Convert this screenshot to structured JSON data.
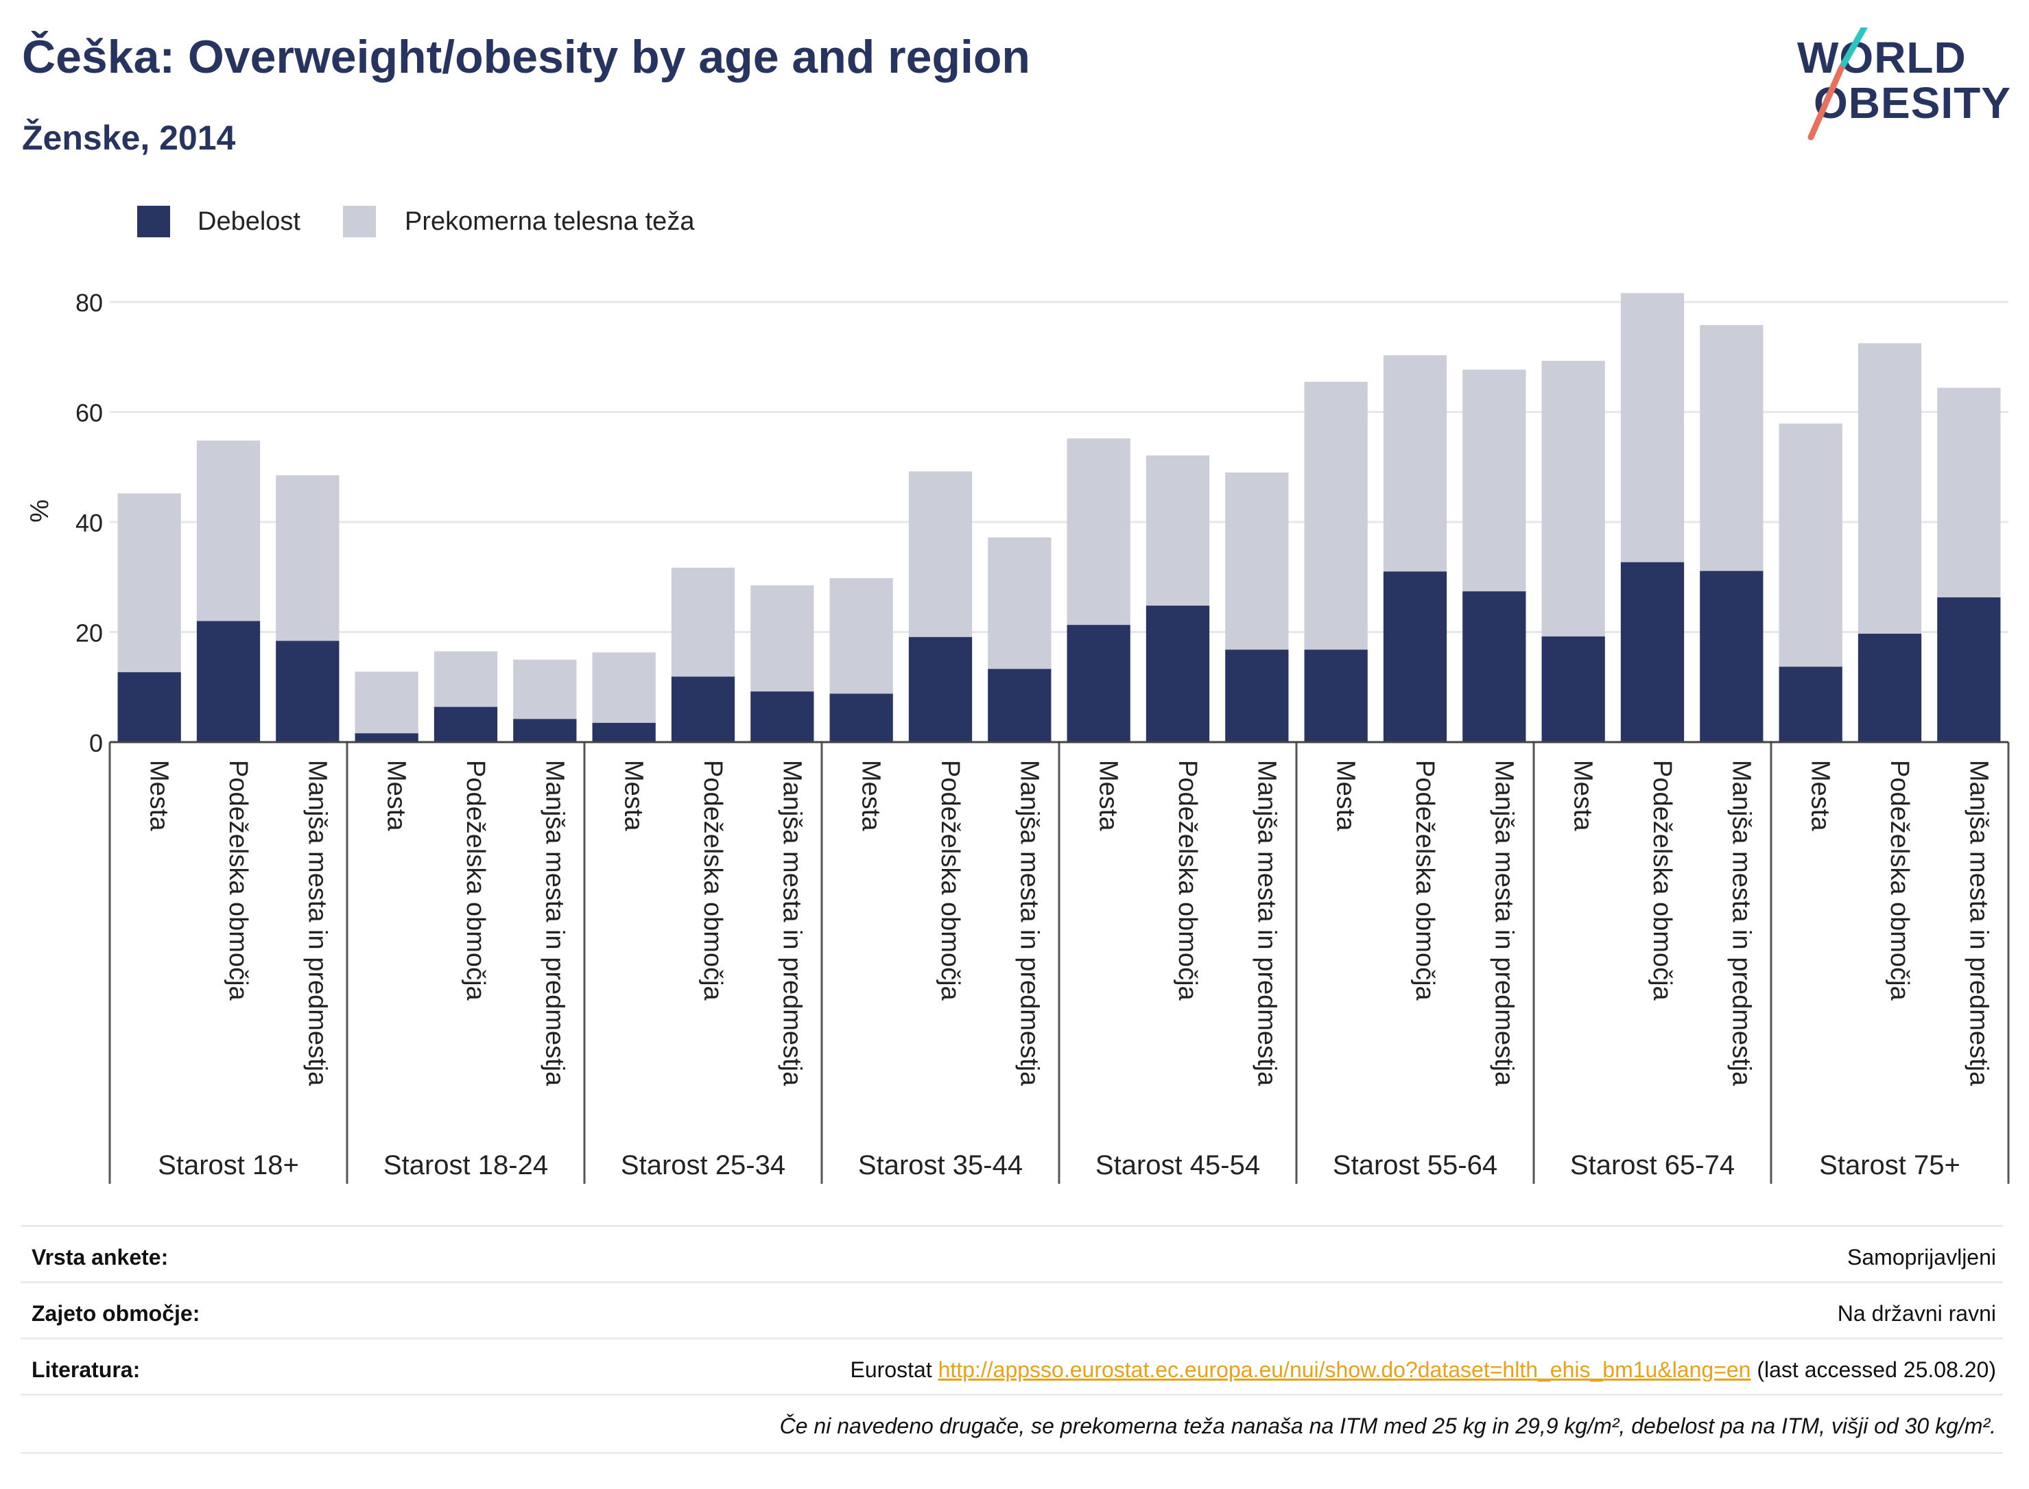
{
  "header": {
    "title": "Češka: Overweight/obesity by age and region",
    "subtitle": "Ženske, 2014"
  },
  "logo": {
    "line1": "WORLD",
    "line2": "OBESITY"
  },
  "colors": {
    "obesity": "#283462",
    "overweight": "#cbcdd9",
    "accent_teal": "#2ec4c0",
    "accent_red": "#e8705e"
  },
  "chart_data": {
    "type": "bar",
    "stacked": true,
    "ylabel": "%",
    "ylim": [
      0,
      90
    ],
    "yticks": [
      0,
      20,
      40,
      60,
      80
    ],
    "grid": true,
    "legend": "top-left",
    "series_names": [
      "Debelost",
      "Prekomerna telesna teža"
    ],
    "groups": [
      {
        "label": "Starost 18+",
        "categories": [
          "Mesta",
          "Podeželska območja",
          "Manjša mesta in predmestja"
        ],
        "obesity": [
          12.7,
          22.0,
          18.4
        ],
        "total": [
          45.2,
          54.8,
          48.5
        ]
      },
      {
        "label": "Starost 18-24",
        "categories": [
          "Mesta",
          "Podeželska območja",
          "Manjša mesta in predmestja"
        ],
        "obesity": [
          1.6,
          6.4,
          4.2
        ],
        "total": [
          12.8,
          16.5,
          15.0
        ]
      },
      {
        "label": "Starost 25-34",
        "categories": [
          "Mesta",
          "Podeželska območja",
          "Manjša mesta in predmestja"
        ],
        "obesity": [
          3.5,
          11.9,
          9.2
        ],
        "total": [
          16.3,
          31.7,
          28.5
        ]
      },
      {
        "label": "Starost 35-44",
        "categories": [
          "Mesta",
          "Podeželska območja",
          "Manjša mesta in predmestja"
        ],
        "obesity": [
          8.8,
          19.1,
          13.3
        ],
        "total": [
          29.8,
          49.2,
          37.2
        ]
      },
      {
        "label": "Starost 45-54",
        "categories": [
          "Mesta",
          "Podeželska območja",
          "Manjša mesta in predmestja"
        ],
        "obesity": [
          21.3,
          24.8,
          16.8
        ],
        "total": [
          55.2,
          52.1,
          49.0
        ]
      },
      {
        "label": "Starost 55-64",
        "categories": [
          "Mesta",
          "Podeželska območja",
          "Manjša mesta in predmestja"
        ],
        "obesity": [
          16.8,
          31.0,
          27.4
        ],
        "total": [
          65.5,
          70.3,
          67.7
        ]
      },
      {
        "label": "Starost 65-74",
        "categories": [
          "Mesta",
          "Podeželska območja",
          "Manjša mesta in predmestja"
        ],
        "obesity": [
          19.2,
          32.7,
          31.1
        ],
        "total": [
          69.3,
          81.6,
          75.8
        ]
      },
      {
        "label": "Starost 75+",
        "categories": [
          "Mesta",
          "Podeželska območja",
          "Manjša mesta in predmestja"
        ],
        "obesity": [
          13.7,
          19.7,
          26.3
        ],
        "total": [
          57.9,
          72.5,
          64.4
        ]
      }
    ]
  },
  "info": {
    "survey_label": "Vrsta ankete:",
    "survey_value": "Samoprijavljeni",
    "area_label": "Zajeto območje:",
    "area_value": "Na državni ravni",
    "ref_label": "Literatura:",
    "ref_prefix": "Eurostat",
    "ref_link": "http://appsso.eurostat.ec.europa.eu/nui/show.do?dataset=hlth_ehis_bm1u&lang=en",
    "ref_suffix": "(last accessed 25.08.20)",
    "note": "Če ni navedeno drugače, se prekomerna teža nanaša na ITM med 25 kg in 29,9 kg/m², debelost pa na ITM, višji od 30 kg/m²."
  }
}
